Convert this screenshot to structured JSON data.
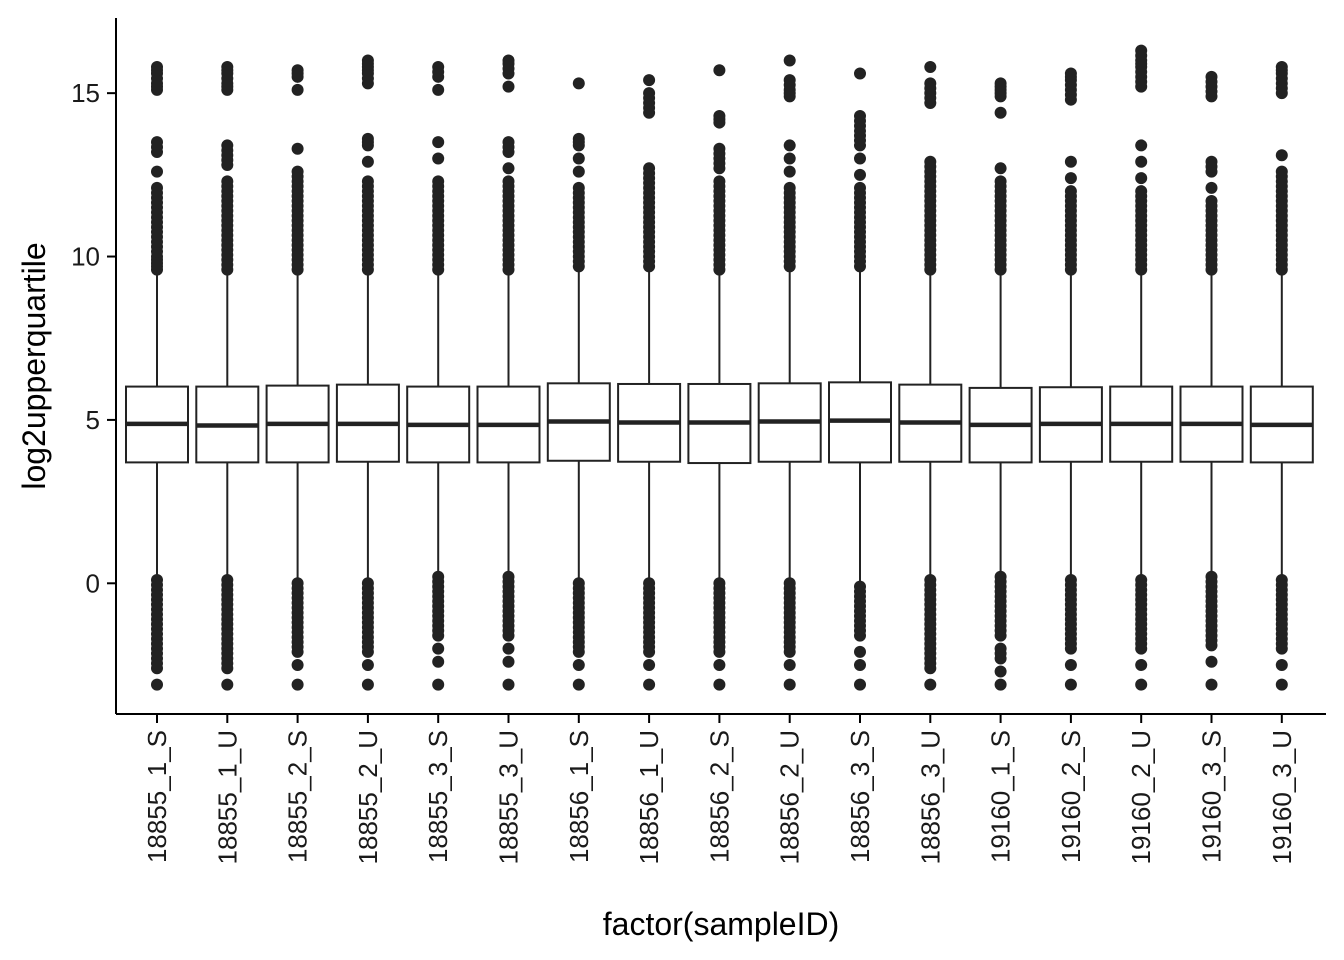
{
  "chart_data": {
    "type": "boxplot",
    "xlabel": "factor(sampleID)",
    "ylabel": "log2upperquartile",
    "ylim": [
      -4.0,
      17.3
    ],
    "yticks": [
      0,
      5,
      10,
      15
    ],
    "grid": false,
    "legend": "none",
    "categories": [
      "18855_1_S",
      "18855_1_U",
      "18855_2_S",
      "18855_2_U",
      "18855_3_S",
      "18855_3_U",
      "18856_1_S",
      "18856_1_U",
      "18856_2_S",
      "18856_2_U",
      "18856_3_S",
      "18856_3_U",
      "19160_1_S",
      "19160_2_S",
      "19160_2_U",
      "19160_3_S",
      "19160_3_U"
    ],
    "boxes": [
      {
        "q1": 3.7,
        "median": 4.88,
        "q3": 6.02,
        "whisker_low": 0.2,
        "whisker_high": 9.5,
        "outliers_high": [
          9.6,
          9.8,
          10.0,
          10.3,
          10.6,
          10.9,
          11.2,
          11.5,
          11.8,
          12.1,
          12.6,
          13.2,
          13.5,
          15.1,
          15.3,
          15.6,
          15.8
        ],
        "outliers_low": [
          0.1,
          -0.2,
          -0.5,
          -0.8,
          -1.1,
          -1.4,
          -1.7,
          -2.0,
          -2.3,
          -2.6,
          -3.1
        ]
      },
      {
        "q1": 3.7,
        "median": 4.83,
        "q3": 6.02,
        "whisker_low": 0.25,
        "whisker_high": 9.5,
        "outliers_high": [
          9.6,
          9.9,
          10.2,
          10.5,
          10.8,
          11.1,
          11.4,
          11.7,
          12.0,
          12.3,
          12.8,
          13.1,
          13.4,
          15.1,
          15.3,
          15.6,
          15.8
        ],
        "outliers_low": [
          0.1,
          -0.2,
          -0.5,
          -0.8,
          -1.1,
          -1.4,
          -1.7,
          -2.0,
          -2.3,
          -2.6,
          -3.1
        ]
      },
      {
        "q1": 3.7,
        "median": 4.88,
        "q3": 6.05,
        "whisker_low": 0.15,
        "whisker_high": 9.55,
        "outliers_high": [
          9.6,
          9.9,
          10.2,
          10.5,
          10.8,
          11.1,
          11.4,
          11.7,
          12.0,
          12.3,
          12.6,
          13.3,
          15.1,
          15.5,
          15.7
        ],
        "outliers_low": [
          0.0,
          -0.3,
          -0.6,
          -0.9,
          -1.2,
          -1.5,
          -1.8,
          -2.1,
          -2.5,
          -3.1
        ]
      },
      {
        "q1": 3.72,
        "median": 4.88,
        "q3": 6.08,
        "whisker_low": 0.15,
        "whisker_high": 9.55,
        "outliers_high": [
          9.6,
          9.9,
          10.2,
          10.5,
          10.8,
          11.1,
          11.4,
          11.7,
          12.0,
          12.3,
          12.9,
          13.4,
          13.6,
          15.3,
          15.6,
          15.8,
          16.0
        ],
        "outliers_low": [
          0.0,
          -0.3,
          -0.6,
          -0.9,
          -1.2,
          -1.5,
          -1.8,
          -2.1,
          -2.5,
          -3.1
        ]
      },
      {
        "q1": 3.7,
        "median": 4.85,
        "q3": 6.02,
        "whisker_low": 0.3,
        "whisker_high": 9.5,
        "outliers_high": [
          9.6,
          9.9,
          10.2,
          10.5,
          10.8,
          11.1,
          11.4,
          11.7,
          12.0,
          12.3,
          13.0,
          13.5,
          15.1,
          15.5,
          15.8
        ],
        "outliers_low": [
          0.2,
          -0.1,
          -0.4,
          -0.7,
          -1.0,
          -1.3,
          -1.6,
          -2.0,
          -2.4,
          -3.1
        ]
      },
      {
        "q1": 3.7,
        "median": 4.85,
        "q3": 6.02,
        "whisker_low": 0.3,
        "whisker_high": 9.5,
        "outliers_high": [
          9.6,
          9.9,
          10.2,
          10.5,
          10.8,
          11.1,
          11.4,
          11.7,
          12.0,
          12.3,
          12.7,
          13.2,
          13.5,
          15.2,
          15.6,
          15.9,
          16.0
        ],
        "outliers_low": [
          0.2,
          -0.1,
          -0.4,
          -0.7,
          -1.0,
          -1.3,
          -1.6,
          -2.0,
          -2.4,
          -3.1
        ]
      },
      {
        "q1": 3.75,
        "median": 4.95,
        "q3": 6.12,
        "whisker_low": 0.15,
        "whisker_high": 9.6,
        "outliers_high": [
          9.7,
          10.0,
          10.3,
          10.6,
          10.9,
          11.2,
          11.5,
          11.8,
          12.1,
          12.6,
          13.0,
          13.4,
          13.6,
          15.3
        ],
        "outliers_low": [
          0.0,
          -0.3,
          -0.6,
          -0.9,
          -1.2,
          -1.5,
          -1.8,
          -2.1,
          -2.5,
          -3.1
        ]
      },
      {
        "q1": 3.72,
        "median": 4.92,
        "q3": 6.1,
        "whisker_low": 0.15,
        "whisker_high": 9.6,
        "outliers_high": [
          9.7,
          10.0,
          10.3,
          10.6,
          10.9,
          11.2,
          11.5,
          11.8,
          12.1,
          12.4,
          12.7,
          14.4,
          14.7,
          15.0,
          15.4
        ],
        "outliers_low": [
          0.0,
          -0.3,
          -0.6,
          -0.9,
          -1.2,
          -1.5,
          -1.8,
          -2.1,
          -2.5,
          -3.1
        ]
      },
      {
        "q1": 3.68,
        "median": 4.92,
        "q3": 6.1,
        "whisker_low": 0.15,
        "whisker_high": 9.55,
        "outliers_high": [
          9.6,
          9.9,
          10.2,
          10.5,
          10.8,
          11.1,
          11.4,
          11.7,
          12.0,
          12.3,
          12.7,
          13.0,
          13.3,
          14.1,
          14.3,
          15.7
        ],
        "outliers_low": [
          0.0,
          -0.3,
          -0.6,
          -0.9,
          -1.2,
          -1.5,
          -1.8,
          -2.1,
          -2.5,
          -3.1
        ]
      },
      {
        "q1": 3.72,
        "median": 4.95,
        "q3": 6.12,
        "whisker_low": 0.1,
        "whisker_high": 9.6,
        "outliers_high": [
          9.7,
          10.0,
          10.3,
          10.6,
          10.9,
          11.2,
          11.5,
          11.8,
          12.1,
          12.6,
          13.0,
          13.4,
          14.9,
          15.1,
          15.4,
          16.0
        ],
        "outliers_low": [
          0.0,
          -0.3,
          -0.6,
          -0.9,
          -1.2,
          -1.5,
          -1.8,
          -2.1,
          -2.5,
          -3.1
        ]
      },
      {
        "q1": 3.7,
        "median": 4.98,
        "q3": 6.15,
        "whisker_low": 0.05,
        "whisker_high": 9.6,
        "outliers_high": [
          9.7,
          10.0,
          10.3,
          10.6,
          10.9,
          11.2,
          11.5,
          11.8,
          12.1,
          12.5,
          13.0,
          13.4,
          13.7,
          14.0,
          14.3,
          15.6
        ],
        "outliers_low": [
          -0.1,
          -0.4,
          -0.7,
          -1.0,
          -1.3,
          -1.6,
          -2.1,
          -2.5,
          -3.1
        ]
      },
      {
        "q1": 3.72,
        "median": 4.92,
        "q3": 6.08,
        "whisker_low": 0.2,
        "whisker_high": 9.55,
        "outliers_high": [
          9.6,
          9.9,
          10.2,
          10.5,
          10.8,
          11.1,
          11.4,
          11.7,
          12.0,
          12.3,
          12.6,
          12.9,
          14.7,
          15.0,
          15.3,
          15.8
        ],
        "outliers_low": [
          0.1,
          -0.2,
          -0.5,
          -0.8,
          -1.1,
          -1.4,
          -1.7,
          -2.0,
          -2.3,
          -2.6,
          -3.1
        ]
      },
      {
        "q1": 3.7,
        "median": 4.85,
        "q3": 5.98,
        "whisker_low": 0.3,
        "whisker_high": 9.5,
        "outliers_high": [
          9.6,
          9.9,
          10.2,
          10.5,
          10.8,
          11.1,
          11.4,
          11.7,
          12.0,
          12.3,
          12.7,
          14.4,
          14.9,
          15.1,
          15.3
        ],
        "outliers_low": [
          0.2,
          -0.1,
          -0.4,
          -0.7,
          -1.0,
          -1.3,
          -1.6,
          -2.0,
          -2.3,
          -2.7,
          -3.1
        ]
      },
      {
        "q1": 3.72,
        "median": 4.88,
        "q3": 6.0,
        "whisker_low": 0.25,
        "whisker_high": 9.5,
        "outliers_high": [
          9.6,
          9.9,
          10.2,
          10.5,
          10.8,
          11.1,
          11.4,
          11.7,
          12.0,
          12.4,
          12.9,
          14.8,
          15.1,
          15.4,
          15.6
        ],
        "outliers_low": [
          0.1,
          -0.2,
          -0.5,
          -0.8,
          -1.1,
          -1.4,
          -1.7,
          -2.0,
          -2.5,
          -3.1
        ]
      },
      {
        "q1": 3.72,
        "median": 4.88,
        "q3": 6.02,
        "whisker_low": 0.25,
        "whisker_high": 9.55,
        "outliers_high": [
          9.6,
          9.9,
          10.2,
          10.5,
          10.8,
          11.1,
          11.4,
          11.7,
          12.0,
          12.4,
          12.9,
          13.4,
          15.2,
          15.5,
          15.8,
          16.0,
          16.3
        ],
        "outliers_low": [
          0.1,
          -0.2,
          -0.5,
          -0.8,
          -1.1,
          -1.4,
          -1.7,
          -2.0,
          -2.5,
          -3.1
        ]
      },
      {
        "q1": 3.72,
        "median": 4.88,
        "q3": 6.02,
        "whisker_low": 0.3,
        "whisker_high": 9.5,
        "outliers_high": [
          9.6,
          9.9,
          10.2,
          10.5,
          10.8,
          11.1,
          11.4,
          11.7,
          12.1,
          12.6,
          12.9,
          14.9,
          15.2,
          15.5
        ],
        "outliers_low": [
          0.2,
          -0.1,
          -0.4,
          -0.7,
          -1.0,
          -1.3,
          -1.6,
          -1.9,
          -2.4,
          -3.1
        ]
      },
      {
        "q1": 3.7,
        "median": 4.85,
        "q3": 6.02,
        "whisker_low": 0.25,
        "whisker_high": 9.5,
        "outliers_high": [
          9.6,
          9.9,
          10.2,
          10.5,
          10.8,
          11.1,
          11.4,
          11.7,
          12.0,
          12.3,
          12.6,
          13.1,
          15.0,
          15.3,
          15.6,
          15.8
        ],
        "outliers_low": [
          0.1,
          -0.2,
          -0.5,
          -0.8,
          -1.1,
          -1.4,
          -1.7,
          -2.0,
          -2.5,
          -3.1
        ]
      }
    ]
  }
}
